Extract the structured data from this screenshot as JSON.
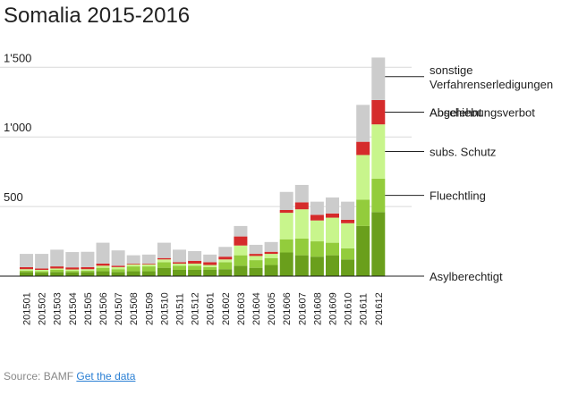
{
  "chart_data": {
    "type": "bar",
    "stacked": true,
    "title": "Somalia 2015-2016",
    "xlabel": "",
    "ylabel": "",
    "ylim": [
      0,
      1650
    ],
    "yticks": [
      500,
      1000,
      1500
    ],
    "ytick_labels": [
      "500",
      "1'000",
      "1'500"
    ],
    "categories": [
      "201501",
      "201502",
      "201503",
      "201504",
      "201505",
      "201506",
      "201507",
      "201508",
      "201509",
      "201510",
      "201511",
      "201512",
      "201601",
      "201602",
      "201603",
      "201604",
      "201605",
      "201606",
      "201607",
      "201608",
      "201609",
      "201610",
      "201611",
      "201612"
    ],
    "series": [
      {
        "name": "Asylberechtigt",
        "color": "#6a9f1c",
        "values": [
          30,
          25,
          30,
          28,
          30,
          35,
          30,
          35,
          35,
          60,
          45,
          45,
          45,
          50,
          75,
          60,
          80,
          170,
          150,
          140,
          150,
          120,
          360,
          460
        ]
      },
      {
        "name": "Fluechtling",
        "color": "#93cc3c",
        "values": [
          10,
          10,
          15,
          10,
          10,
          25,
          20,
          35,
          35,
          40,
          30,
          30,
          20,
          50,
          75,
          55,
          50,
          95,
          120,
          110,
          90,
          80,
          190,
          240
        ]
      },
      {
        "name": "subs. Schutz",
        "color": "#c8f58c",
        "values": [
          10,
          10,
          10,
          10,
          10,
          15,
          15,
          15,
          15,
          20,
          15,
          15,
          15,
          20,
          70,
          30,
          30,
          190,
          210,
          150,
          180,
          180,
          320,
          390
        ]
      },
      {
        "name": "Abschiebungsverbot",
        "color": "#d52b2b",
        "values": [
          15,
          10,
          15,
          15,
          15,
          15,
          10,
          5,
          5,
          10,
          10,
          20,
          20,
          20,
          65,
          15,
          15,
          20,
          50,
          40,
          30,
          25,
          95,
          175
        ]
      },
      {
        "name": "Abgelehnt",
        "color": "#cccccc",
        "values": [
          0,
          0,
          0,
          0,
          0,
          0,
          0,
          0,
          0,
          0,
          0,
          0,
          0,
          0,
          0,
          0,
          0,
          0,
          0,
          0,
          0,
          0,
          0,
          0
        ]
      },
      {
        "name": "sonstige Verfahrenserledigungen",
        "color": "#cccccc",
        "values": [
          95,
          105,
          120,
          110,
          110,
          150,
          110,
          60,
          65,
          110,
          90,
          70,
          55,
          70,
          75,
          65,
          70,
          130,
          125,
          95,
          115,
          130,
          265,
          305
        ]
      }
    ],
    "legend": {
      "placement": "right",
      "entries": [
        "sonstige Verfahrenserledigungen",
        "Abgelehnt",
        "Abschiebungsverbot",
        "subs. Schutz",
        "Fluechtling",
        "Asylberechtigt"
      ],
      "label_lines": [
        [
          "sonstige",
          "Verfahrenserledigungen"
        ],
        [
          "Abgelehnt"
        ],
        [
          "Abschiebungsverbot"
        ],
        [
          "subs. Schutz"
        ],
        [
          "Fluechtling"
        ],
        [
          "Asylberechtigt"
        ]
      ]
    }
  },
  "source": {
    "label": "Source: BAMF",
    "link_text": "Get the data"
  }
}
